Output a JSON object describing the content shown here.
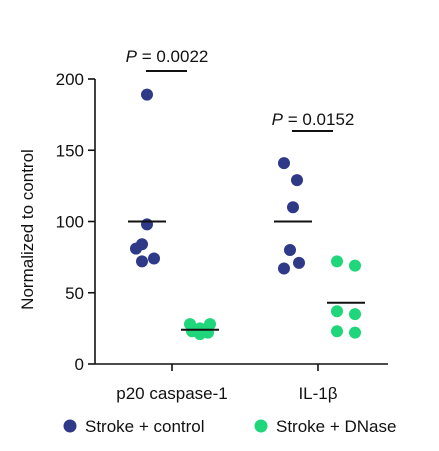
{
  "chart_data": {
    "type": "scatter",
    "title": "",
    "ylabel": "Normalized to control",
    "ylim": [
      0,
      200
    ],
    "yticks": [
      0,
      50,
      100,
      150,
      200
    ],
    "categories": [
      "p20 caspase-1",
      "IL-1β"
    ],
    "series": [
      {
        "name": "Stroke + control",
        "color": "#2e3a87",
        "groups": [
          {
            "category": "p20 caspase-1",
            "values": [
              189,
              98,
              84,
              81,
              74,
              72
            ],
            "mean": 100
          },
          {
            "category": "IL-1β",
            "values": [
              141,
              129,
              110,
              80,
              71,
              67
            ],
            "mean": 100
          }
        ]
      },
      {
        "name": "Stroke + DNase",
        "color": "#1fd67a",
        "groups": [
          {
            "category": "p20 caspase-1",
            "values": [
              28,
              28,
              25,
              23,
              22,
              21
            ],
            "mean": 24
          },
          {
            "category": "IL-1β",
            "values": [
              72,
              69,
              37,
              35,
              23,
              22
            ],
            "mean": 43
          }
        ]
      }
    ],
    "comparisons": [
      {
        "category": "p20 caspase-1",
        "label_prefix": "P",
        "label_rest": " = 0.0022"
      },
      {
        "category": "IL-1β",
        "label_prefix": "P",
        "label_rest": " = 0.0152"
      }
    ],
    "grid": false,
    "legend_position": "bottom"
  }
}
